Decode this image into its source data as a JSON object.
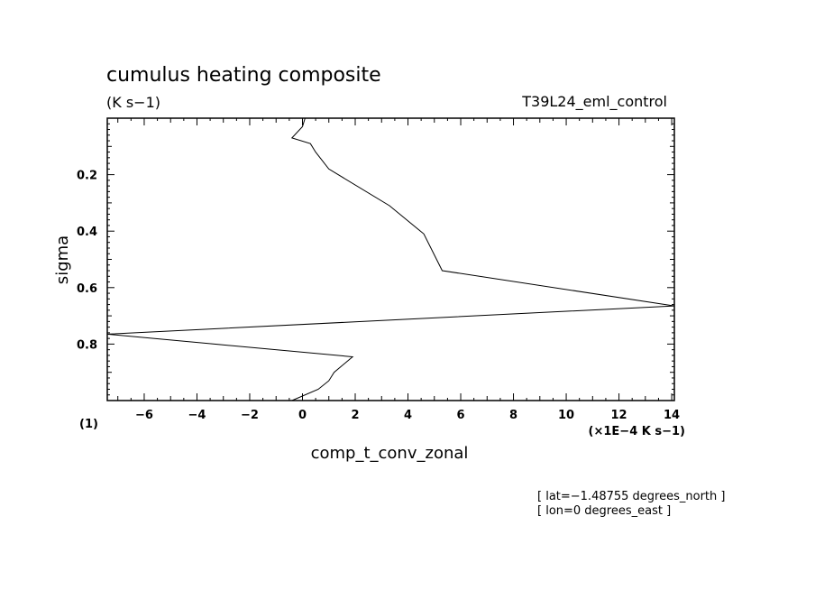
{
  "chart_data": {
    "type": "line",
    "title": "cumulus heating composite",
    "units_label": "(K s−1)",
    "run_label": "T39L24_eml_control",
    "xlabel": "comp_t_conv_zonal",
    "xscale_label": "(×1E−4 K s−1)",
    "ylabel": "sigma",
    "yunit_label": "(1)",
    "xlim": [
      -7.4,
      14.1
    ],
    "ylim": [
      0.0,
      1.0
    ],
    "y_reversed": true,
    "x_ticks": [
      -6,
      -4,
      -2,
      0,
      2,
      4,
      6,
      8,
      10,
      12,
      14
    ],
    "x_tick_labels": [
      "−6",
      "−4",
      "−2",
      "0",
      "2",
      "4",
      "6",
      "8",
      "10",
      "12",
      "14"
    ],
    "y_ticks": [
      0.2,
      0.4,
      0.6,
      0.8
    ],
    "y_tick_labels": [
      "0.2",
      "0.4",
      "0.6",
      "0.8"
    ],
    "series": [
      {
        "x": [
          0.1,
          0.0,
          -0.4,
          0.3,
          0.5,
          1.0,
          3.3,
          4.6,
          5.3,
          14.1,
          -7.4,
          1.9,
          1.2,
          1.0,
          0.6,
          -0.4
        ],
        "y": [
          0.0,
          0.03,
          0.07,
          0.09,
          0.12,
          0.18,
          0.31,
          0.41,
          0.54,
          0.665,
          0.765,
          0.845,
          0.9,
          0.93,
          0.96,
          1.0
        ]
      }
    ],
    "annotations": [
      "[ lat=−1.48755 degrees_north ]",
      "[ lon=0 degrees_east ]"
    ]
  }
}
